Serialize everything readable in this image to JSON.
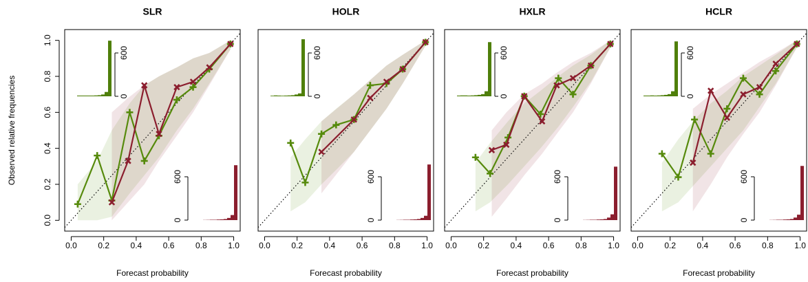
{
  "chart_data": [
    {
      "type": "line",
      "title": "SLR",
      "x_label": "Forecast probability",
      "y_label": "Observed relative frequencies",
      "xlim": [
        -0.04,
        1.04
      ],
      "ylim": [
        -0.06,
        1.06
      ],
      "xticks": [
        {
          "value": 0,
          "label": "0.0"
        },
        {
          "value": 0.2,
          "label": "0.2"
        },
        {
          "value": 0.4,
          "label": "0.4"
        },
        {
          "value": 0.6,
          "label": "0.6"
        },
        {
          "value": 0.8,
          "label": "0.8"
        },
        {
          "value": 1,
          "label": "1.0"
        }
      ],
      "yticks": [
        {
          "value": 0,
          "label": "0.0"
        },
        {
          "value": 0.2,
          "label": "0.2"
        },
        {
          "value": 0.4,
          "label": "0.4"
        },
        {
          "value": 0.6,
          "label": "0.6"
        },
        {
          "value": 0.8,
          "label": "0.8"
        },
        {
          "value": 1,
          "label": "1.0"
        }
      ],
      "series": [
        {
          "color": "#568a0c",
          "marker": "plus",
          "x": [
            0.04,
            0.16,
            0.25,
            0.36,
            0.45,
            0.54,
            0.65,
            0.75,
            0.85,
            0.98
          ],
          "values": [
            0.09,
            0.36,
            0.11,
            0.6,
            0.33,
            0.47,
            0.67,
            0.74,
            0.84,
            0.98
          ],
          "lower": [
            0,
            0,
            0.02,
            0.15,
            0.25,
            0.35,
            0.5,
            0.62,
            0.76,
            0.95
          ],
          "upper": [
            0.2,
            0.33,
            0.5,
            0.65,
            0.75,
            0.8,
            0.85,
            0.9,
            0.93,
            1.0
          ]
        },
        {
          "color": "#8b1e2e",
          "marker": "cross",
          "x": [
            0.25,
            0.35,
            0.45,
            0.54,
            0.65,
            0.75,
            0.85,
            0.98
          ],
          "values": [
            0.1,
            0.33,
            0.75,
            0.48,
            0.74,
            0.77,
            0.85,
            0.98
          ],
          "lower": [
            0,
            0.1,
            0.2,
            0.33,
            0.47,
            0.6,
            0.75,
            0.95
          ],
          "upper": [
            0.6,
            0.68,
            0.75,
            0.8,
            0.85,
            0.9,
            0.93,
            1.0
          ]
        }
      ],
      "insets": [
        {
          "corner": "top-left",
          "color": "#4f7f0a",
          "bins": [
            0,
            0.1,
            0.2,
            0.3,
            0.4,
            0.5,
            0.6,
            0.7,
            0.8,
            0.9,
            1.0
          ],
          "counts": [
            10,
            10,
            10,
            10,
            10,
            12,
            15,
            25,
            60,
            770
          ],
          "ylim": [
            0,
            800
          ],
          "yticks": [
            0,
            600
          ]
        },
        {
          "corner": "bottom-right",
          "color": "#8b1e2e",
          "bins": [
            0,
            0.1,
            0.2,
            0.3,
            0.4,
            0.5,
            0.6,
            0.7,
            0.8,
            0.9,
            1.0
          ],
          "counts": [
            2,
            3,
            5,
            5,
            8,
            10,
            15,
            30,
            70,
            760
          ],
          "ylim": [
            0,
            800
          ],
          "yticks": [
            0,
            600
          ]
        }
      ]
    },
    {
      "type": "line",
      "title": "HOLR",
      "x_label": "Forecast probability",
      "xlim": [
        -0.04,
        1.04
      ],
      "ylim": [
        -0.06,
        1.06
      ],
      "xticks": [
        {
          "value": 0,
          "label": "0.0"
        },
        {
          "value": 0.2,
          "label": "0.2"
        },
        {
          "value": 0.4,
          "label": "0.4"
        },
        {
          "value": 0.6,
          "label": "0.6"
        },
        {
          "value": 0.8,
          "label": "0.8"
        },
        {
          "value": 1,
          "label": "1.0"
        }
      ],
      "series": [
        {
          "color": "#568a0c",
          "marker": "plus",
          "x": [
            0.16,
            0.25,
            0.35,
            0.44,
            0.55,
            0.65,
            0.75,
            0.85,
            0.99
          ],
          "values": [
            0.43,
            0.21,
            0.48,
            0.53,
            0.56,
            0.75,
            0.76,
            0.84,
            0.99
          ],
          "lower": [
            0.05,
            0.1,
            0.2,
            0.28,
            0.38,
            0.5,
            0.62,
            0.76,
            0.97
          ],
          "upper": [
            0.35,
            0.45,
            0.55,
            0.62,
            0.7,
            0.78,
            0.86,
            0.92,
            1.0
          ]
        },
        {
          "color": "#8b1e2e",
          "marker": "cross",
          "x": [
            0.35,
            0.55,
            0.65,
            0.75,
            0.85,
            0.99
          ],
          "values": [
            0.38,
            0.56,
            0.68,
            0.77,
            0.84,
            0.99
          ],
          "lower": [
            0.15,
            0.38,
            0.5,
            0.62,
            0.76,
            0.97
          ],
          "upper": [
            0.55,
            0.7,
            0.78,
            0.86,
            0.92,
            1.0
          ]
        }
      ],
      "insets": [
        {
          "corner": "top-left",
          "color": "#4f7f0a",
          "bins": [
            0,
            0.1,
            0.2,
            0.3,
            0.4,
            0.5,
            0.6,
            0.7,
            0.8,
            0.9,
            1.0
          ],
          "counts": [
            8,
            12,
            10,
            8,
            10,
            12,
            15,
            25,
            40,
            790
          ],
          "ylim": [
            0,
            800
          ],
          "yticks": [
            0,
            600
          ]
        },
        {
          "corner": "bottom-right",
          "color": "#8b1e2e",
          "bins": [
            0,
            0.1,
            0.2,
            0.3,
            0.4,
            0.5,
            0.6,
            0.7,
            0.8,
            0.9,
            1.0
          ],
          "counts": [
            2,
            3,
            5,
            5,
            8,
            10,
            15,
            30,
            60,
            770
          ],
          "ylim": [
            0,
            800
          ],
          "yticks": [
            0,
            600
          ]
        }
      ]
    },
    {
      "type": "line",
      "title": "HXLR",
      "x_label": "Forecast probability",
      "xlim": [
        -0.04,
        1.04
      ],
      "ylim": [
        -0.06,
        1.06
      ],
      "xticks": [
        {
          "value": 0,
          "label": "0.0"
        },
        {
          "value": 0.2,
          "label": "0.2"
        },
        {
          "value": 0.4,
          "label": "0.4"
        },
        {
          "value": 0.6,
          "label": "0.6"
        },
        {
          "value": 0.8,
          "label": "0.8"
        },
        {
          "value": 1,
          "label": "1.0"
        }
      ],
      "series": [
        {
          "color": "#568a0c",
          "marker": "plus",
          "x": [
            0.15,
            0.24,
            0.35,
            0.45,
            0.55,
            0.66,
            0.75,
            0.86,
            0.98
          ],
          "values": [
            0.35,
            0.26,
            0.46,
            0.69,
            0.59,
            0.79,
            0.7,
            0.86,
            0.98
          ],
          "lower": [
            0.05,
            0.1,
            0.2,
            0.3,
            0.4,
            0.52,
            0.63,
            0.77,
            0.96
          ],
          "upper": [
            0.32,
            0.43,
            0.55,
            0.65,
            0.72,
            0.8,
            0.86,
            0.92,
            1.0
          ]
        },
        {
          "color": "#8b1e2e",
          "marker": "cross",
          "x": [
            0.25,
            0.34,
            0.45,
            0.56,
            0.65,
            0.75,
            0.86,
            0.98
          ],
          "values": [
            0.39,
            0.42,
            0.69,
            0.55,
            0.75,
            0.79,
            0.86,
            0.98
          ],
          "lower": [
            0.02,
            0.12,
            0.25,
            0.37,
            0.48,
            0.6,
            0.76,
            0.96
          ],
          "upper": [
            0.5,
            0.6,
            0.7,
            0.76,
            0.82,
            0.88,
            0.93,
            1.0
          ]
        }
      ],
      "insets": [
        {
          "corner": "top-left",
          "color": "#4f7f0a",
          "bins": [
            0,
            0.1,
            0.2,
            0.3,
            0.4,
            0.5,
            0.6,
            0.7,
            0.8,
            0.9,
            1.0
          ],
          "counts": [
            10,
            12,
            12,
            10,
            12,
            15,
            20,
            30,
            70,
            750
          ],
          "ylim": [
            0,
            800
          ],
          "yticks": [
            0,
            600
          ]
        },
        {
          "corner": "bottom-right",
          "color": "#8b1e2e",
          "bins": [
            0,
            0.1,
            0.2,
            0.3,
            0.4,
            0.5,
            0.6,
            0.7,
            0.8,
            0.9,
            1.0
          ],
          "counts": [
            2,
            3,
            5,
            5,
            8,
            10,
            15,
            35,
            80,
            740
          ],
          "ylim": [
            0,
            800
          ],
          "yticks": [
            0,
            600
          ]
        }
      ]
    },
    {
      "type": "line",
      "title": "HCLR",
      "x_label": "Forecast probability",
      "xlim": [
        -0.04,
        1.04
      ],
      "ylim": [
        -0.06,
        1.06
      ],
      "xticks": [
        {
          "value": 0,
          "label": "0.0"
        },
        {
          "value": 0.2,
          "label": "0.2"
        },
        {
          "value": 0.4,
          "label": "0.4"
        },
        {
          "value": 0.6,
          "label": "0.6"
        },
        {
          "value": 0.8,
          "label": "0.8"
        },
        {
          "value": 1,
          "label": "1.0"
        }
      ],
      "series": [
        {
          "color": "#568a0c",
          "marker": "plus",
          "x": [
            0.15,
            0.25,
            0.35,
            0.45,
            0.55,
            0.65,
            0.75,
            0.85,
            0.98
          ],
          "values": [
            0.37,
            0.24,
            0.56,
            0.37,
            0.62,
            0.79,
            0.7,
            0.83,
            0.98
          ],
          "lower": [
            0.05,
            0.1,
            0.2,
            0.3,
            0.4,
            0.5,
            0.63,
            0.76,
            0.96
          ],
          "upper": [
            0.32,
            0.45,
            0.56,
            0.65,
            0.72,
            0.8,
            0.86,
            0.92,
            1.0
          ]
        },
        {
          "color": "#8b1e2e",
          "marker": "cross",
          "x": [
            0.34,
            0.45,
            0.55,
            0.65,
            0.75,
            0.85,
            0.98
          ],
          "values": [
            0.32,
            0.72,
            0.57,
            0.7,
            0.74,
            0.87,
            0.98
          ],
          "lower": [
            0.05,
            0.2,
            0.35,
            0.48,
            0.6,
            0.75,
            0.96
          ],
          "upper": [
            0.62,
            0.7,
            0.76,
            0.82,
            0.88,
            0.93,
            1.0
          ]
        }
      ],
      "insets": [
        {
          "corner": "top-left",
          "color": "#4f7f0a",
          "bins": [
            0,
            0.1,
            0.2,
            0.3,
            0.4,
            0.5,
            0.6,
            0.7,
            0.8,
            0.9,
            1.0
          ],
          "counts": [
            10,
            10,
            12,
            10,
            12,
            15,
            20,
            30,
            70,
            760
          ],
          "ylim": [
            0,
            800
          ],
          "yticks": [
            0,
            600
          ]
        },
        {
          "corner": "bottom-right",
          "color": "#8b1e2e",
          "bins": [
            0,
            0.1,
            0.2,
            0.3,
            0.4,
            0.5,
            0.6,
            0.7,
            0.8,
            0.9,
            1.0
          ],
          "counts": [
            2,
            3,
            5,
            5,
            8,
            10,
            15,
            35,
            75,
            750
          ],
          "ylim": [
            0,
            800
          ],
          "yticks": [
            0,
            600
          ]
        }
      ]
    }
  ]
}
